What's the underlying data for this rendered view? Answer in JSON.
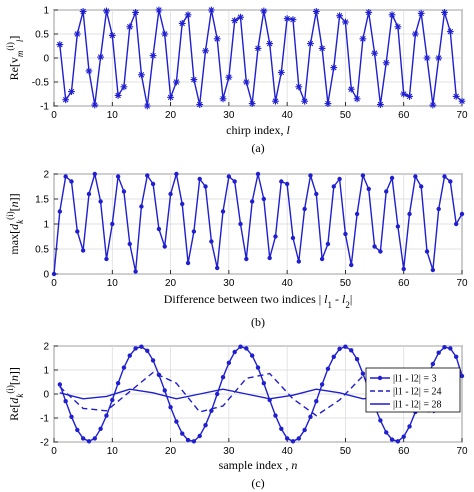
{
  "chart_data": [
    {
      "type": "line",
      "panel_label": "(a)",
      "xlabel": "chirp index,",
      "xlabel_var": "l",
      "ylabel": "Re[v_m^(i)l]",
      "xlim": [
        0,
        70
      ],
      "ylim": [
        -1,
        1
      ],
      "xticks": [
        "0",
        "10",
        "20",
        "30",
        "40",
        "50",
        "60",
        "70"
      ],
      "yticks": [
        "1",
        "0.5",
        "0",
        "-0.5",
        "-1"
      ],
      "grid": true,
      "color": "#1f1fd0",
      "marker": "asterisk",
      "series": [
        {
          "x": [
            1,
            2,
            3,
            4,
            5,
            6,
            7,
            8,
            9,
            10,
            11,
            12,
            13,
            14,
            15,
            16,
            17,
            18,
            19,
            20,
            21,
            22,
            23,
            24,
            25,
            26,
            27,
            28,
            29,
            30,
            31,
            32,
            33,
            34,
            35,
            36,
            37,
            38,
            39,
            40,
            41,
            42,
            43,
            44,
            45,
            46,
            47,
            48,
            49,
            50,
            51,
            52,
            53,
            54,
            55,
            56,
            57,
            58,
            59,
            60,
            61,
            62,
            63,
            64,
            65,
            66,
            67,
            68,
            69,
            70
          ],
          "y": [
            0.28,
            -0.87,
            -0.7,
            0.5,
            0.97,
            -0.27,
            -0.98,
            0.02,
            0.98,
            0.47,
            -0.78,
            -0.6,
            0.65,
            0.95,
            -0.35,
            -1.0,
            0.05,
            1.0,
            0.5,
            -0.82,
            -0.5,
            0.72,
            0.9,
            -0.45,
            -0.97,
            0.15,
            1.0,
            0.4,
            -0.85,
            -0.4,
            0.78,
            0.85,
            -0.5,
            -0.95,
            0.2,
            0.98,
            0.3,
            -0.9,
            -0.3,
            0.82,
            0.8,
            -0.6,
            -0.9,
            0.3,
            0.97,
            0.2,
            -0.95,
            -0.2,
            0.88,
            0.75,
            -0.65,
            -0.85,
            0.4,
            0.95,
            0.1,
            -0.97,
            -0.1,
            0.9,
            0.65,
            -0.75,
            -0.8,
            0.5,
            0.93,
            0.0,
            -0.98,
            0.0,
            0.95,
            0.55,
            -0.8,
            -0.9
          ]
        }
      ]
    },
    {
      "type": "line",
      "panel_label": "(b)",
      "xlabel": "Difference between two indices",
      "xlabel_var": "| l1 - l2|",
      "ylabel": "max[d_k^(i)[n]]",
      "xlim": [
        0,
        70
      ],
      "ylim": [
        0,
        2
      ],
      "xticks": [
        "0",
        "10",
        "20",
        "30",
        "40",
        "50",
        "60",
        "70"
      ],
      "yticks": [
        "2",
        "1.5",
        "1",
        "0.5",
        "0"
      ],
      "grid": true,
      "color": "#1f1fd0",
      "marker": "dot",
      "series": [
        {
          "x": [
            0,
            1,
            2,
            3,
            4,
            5,
            6,
            7,
            8,
            9,
            10,
            11,
            12,
            13,
            14,
            15,
            16,
            17,
            18,
            19,
            20,
            21,
            22,
            23,
            24,
            25,
            26,
            27,
            28,
            29,
            30,
            31,
            32,
            33,
            34,
            35,
            36,
            37,
            38,
            39,
            40,
            41,
            42,
            43,
            44,
            45,
            46,
            47,
            48,
            49,
            50,
            51,
            52,
            53,
            54,
            55,
            56,
            57,
            58,
            59,
            60,
            61,
            62,
            63,
            64,
            65,
            66,
            67,
            68,
            69,
            70
          ],
          "y": [
            0.0,
            1.25,
            1.95,
            1.85,
            0.85,
            0.47,
            1.6,
            2.0,
            1.45,
            0.3,
            1.0,
            1.95,
            1.65,
            0.6,
            0.05,
            1.35,
            1.97,
            1.8,
            0.9,
            0.55,
            1.6,
            2.0,
            1.4,
            0.22,
            0.85,
            1.9,
            1.75,
            0.65,
            0.12,
            1.25,
            1.95,
            1.85,
            1.0,
            0.3,
            1.45,
            2.0,
            1.5,
            0.32,
            0.75,
            1.85,
            1.8,
            0.72,
            0.25,
            1.3,
            1.97,
            1.6,
            0.3,
            0.6,
            1.75,
            1.9,
            0.8,
            0.18,
            1.2,
            1.97,
            1.7,
            0.55,
            0.45,
            1.65,
            1.92,
            0.95,
            0.1,
            1.2,
            1.95,
            1.75,
            0.45,
            0.08,
            1.3,
            1.95,
            1.85,
            1.0,
            1.2
          ]
        }
      ]
    },
    {
      "type": "line",
      "panel_label": "(c)",
      "xlabel": "sample index ,",
      "xlabel_var": "n",
      "ylabel": "Re[d_k^(i)[n]]",
      "xlim": [
        0,
        70
      ],
      "ylim": [
        -2,
        2
      ],
      "xticks": [
        "0",
        "10",
        "20",
        "30",
        "40",
        "50",
        "60",
        "70"
      ],
      "yticks": [
        "2",
        "1",
        "0",
        "-1",
        "-2"
      ],
      "grid": true,
      "legend_position": "center-right",
      "color": "#1f1fd0",
      "series": [
        {
          "name": "|l1 - l2| = 3",
          "style": "solid-dot",
          "x": [
            1,
            2,
            3,
            4,
            5,
            6,
            7,
            8,
            9,
            10,
            11,
            12,
            13,
            14,
            15,
            16,
            17,
            18,
            19,
            20,
            21,
            22,
            23,
            24,
            25,
            26,
            27,
            28,
            29,
            30,
            31,
            32,
            33,
            34,
            35,
            36,
            37,
            38,
            39,
            40,
            41,
            42,
            43,
            44,
            45,
            46,
            47,
            48,
            49,
            50,
            51,
            52,
            53,
            54,
            55,
            56,
            57,
            58,
            59,
            60,
            61,
            62,
            63,
            64,
            65,
            66,
            67,
            68,
            69,
            70
          ],
          "y": [
            0.4,
            -0.3,
            -0.95,
            -1.5,
            -1.85,
            -1.97,
            -1.85,
            -1.45,
            -0.9,
            -0.25,
            0.45,
            1.1,
            1.6,
            1.9,
            1.97,
            1.8,
            1.4,
            0.8,
            0.15,
            -0.55,
            -1.15,
            -1.65,
            -1.92,
            -1.97,
            -1.75,
            -1.3,
            -0.7,
            0.0,
            0.7,
            1.3,
            1.75,
            1.97,
            1.9,
            1.6,
            1.1,
            0.45,
            -0.25,
            -0.9,
            -1.45,
            -1.85,
            -1.97,
            -1.85,
            -1.5,
            -0.95,
            -0.3,
            0.4,
            1.05,
            1.55,
            1.88,
            1.97,
            1.82,
            1.45,
            0.85,
            0.2,
            -0.5,
            -1.1,
            -1.6,
            -1.9,
            -1.97,
            -1.78,
            -1.35,
            -0.75,
            -0.05,
            0.65,
            1.25,
            1.72,
            1.95,
            1.9,
            1.55,
            0.75
          ]
        },
        {
          "name": "|l1 - l2| = 24",
          "style": "dashed",
          "x": [
            1,
            5,
            9,
            13,
            17,
            21,
            25,
            29,
            33,
            37,
            41,
            45,
            49,
            53,
            57,
            61,
            65,
            69
          ],
          "y": [
            0.3,
            -0.6,
            -0.7,
            0.1,
            0.9,
            0.45,
            -0.75,
            -0.5,
            0.65,
            0.85,
            -0.2,
            -0.9,
            -0.25,
            0.75,
            0.55,
            -0.5,
            -0.8,
            0.0
          ]
        },
        {
          "name": "|l1 - l2| = 28",
          "style": "solid",
          "x": [
            1,
            5,
            9,
            13,
            17,
            21,
            25,
            29,
            33,
            37,
            41,
            45,
            49,
            53,
            57,
            61,
            65,
            69
          ],
          "y": [
            0.05,
            -0.2,
            -0.1,
            0.2,
            0.05,
            -0.2,
            0.0,
            0.2,
            0.0,
            -0.2,
            -0.05,
            0.2,
            0.05,
            -0.2,
            -0.1,
            0.15,
            0.1,
            -0.1
          ]
        }
      ]
    }
  ]
}
